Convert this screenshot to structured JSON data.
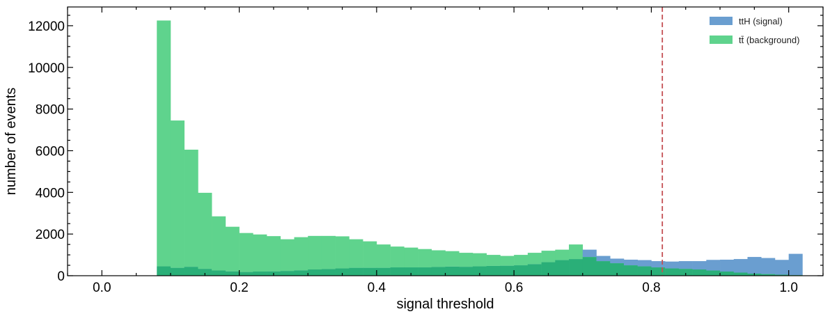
{
  "chart_data": {
    "type": "histogram",
    "xlabel": "signal threshold",
    "ylabel": "number of events",
    "xlim": [
      -0.05,
      1.05
    ],
    "ylim": [
      0,
      12900
    ],
    "x_ticks": [
      "0.0",
      "0.2",
      "0.4",
      "0.6",
      "0.8",
      "1.0"
    ],
    "y_ticks": [
      "0",
      "2000",
      "4000",
      "6000",
      "8000",
      "10000",
      "12000"
    ],
    "x_tick_values": [
      0.0,
      0.2,
      0.4,
      0.6,
      0.8,
      1.0
    ],
    "y_tick_values": [
      0,
      2000,
      4000,
      6000,
      8000,
      10000,
      12000
    ],
    "bin_start": 0.08,
    "bin_width": 0.02,
    "legend": "upper right",
    "threshold_line": {
      "x": 0.816,
      "color": "#c44e52",
      "style": "dashed"
    },
    "series": [
      {
        "name": "ttH (signal)",
        "color": "#6a9ed0",
        "values": [
          450,
          380,
          430,
          330,
          250,
          210,
          180,
          200,
          210,
          230,
          260,
          300,
          320,
          350,
          380,
          380,
          380,
          400,
          400,
          400,
          420,
          440,
          430,
          450,
          470,
          480,
          500,
          560,
          650,
          750,
          800,
          1250,
          950,
          820,
          770,
          750,
          700,
          680,
          700,
          700,
          760,
          770,
          800,
          900,
          850,
          760,
          1050
        ]
      },
      {
        "name": "t̄t (background)",
        "display_name": "tt̄ (background)",
        "color": "#5fd38d",
        "values": [
          12250,
          7450,
          6050,
          3980,
          2850,
          2350,
          2050,
          1980,
          1900,
          1750,
          1850,
          1910,
          1910,
          1890,
          1750,
          1650,
          1500,
          1400,
          1350,
          1280,
          1220,
          1180,
          1100,
          1080,
          1000,
          950,
          1000,
          1100,
          1200,
          1250,
          1500,
          900,
          700,
          600,
          500,
          450,
          400,
          350,
          330,
          300,
          250,
          200,
          150,
          100,
          80,
          50,
          30
        ]
      }
    ]
  }
}
